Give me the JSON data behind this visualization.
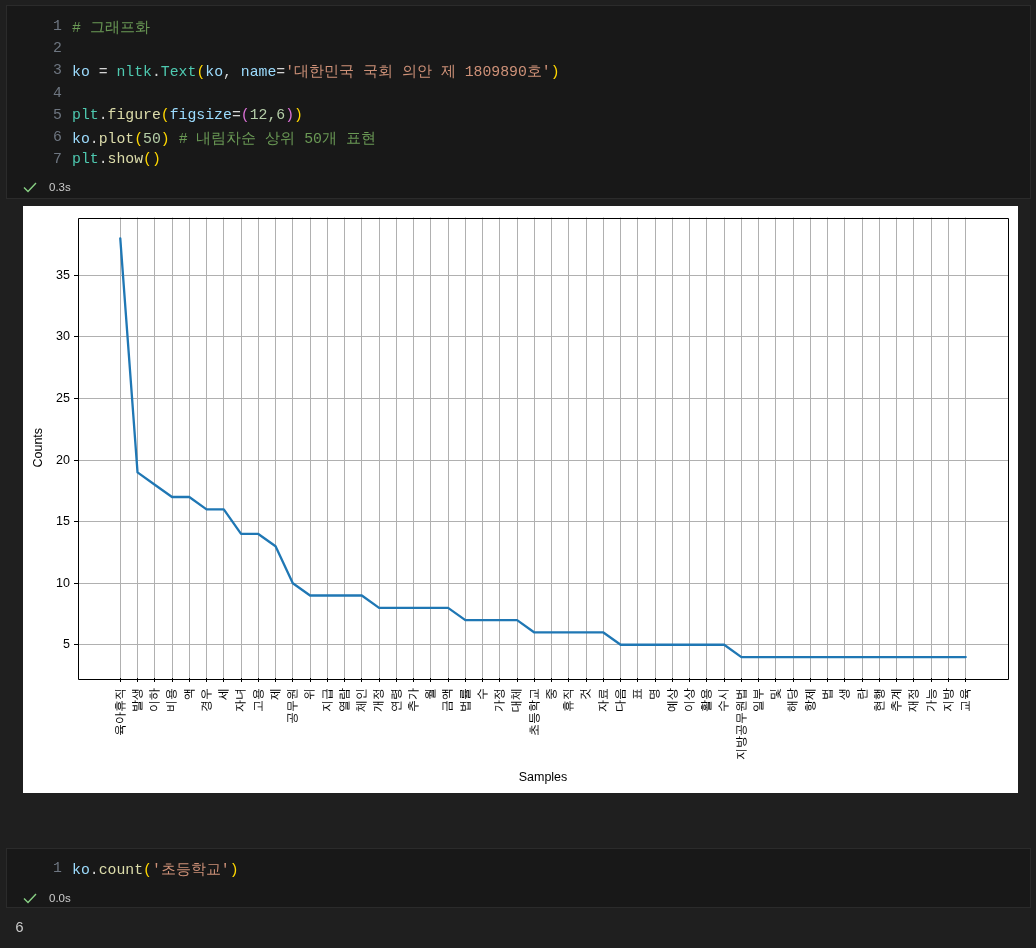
{
  "chart_data": {
    "type": "line",
    "xlabel": "Samples",
    "ylabel": "Counts",
    "categories": [
      "육아휴직",
      "발생",
      "이하",
      "비용",
      "액",
      "경우",
      "세",
      "자녀",
      "고용",
      "제",
      "공무원",
      "위",
      "지급",
      "열람",
      "체인",
      "개정",
      "연령",
      "추가",
      "월",
      "금액",
      "법률",
      "수",
      "가정",
      "대체",
      "초등학교",
      "중",
      "휴직",
      "것",
      "자료",
      "다음",
      "표",
      "명",
      "예상",
      "이상",
      "활용",
      "수시",
      "지방공무원법",
      "일부",
      "및",
      "해당",
      "항제",
      "법",
      "생",
      "란",
      "현행",
      "추계",
      "재정",
      "가능",
      "지방",
      "교육"
    ],
    "values": [
      38,
      19,
      18,
      17,
      17,
      16,
      16,
      14,
      14,
      13,
      10,
      9,
      9,
      9,
      9,
      8,
      8,
      8,
      8,
      8,
      7,
      7,
      7,
      7,
      6,
      6,
      6,
      6,
      6,
      5,
      5,
      5,
      5,
      5,
      5,
      5,
      4,
      4,
      4,
      4,
      4,
      4,
      4,
      4,
      4,
      4,
      4,
      4,
      4,
      4
    ],
    "color": "#1f77b4",
    "ylim": [
      2.3,
      39.7
    ],
    "yticks": [
      5,
      10,
      15,
      20,
      25,
      30,
      35
    ],
    "grid": true,
    "annotations": [
      "1 # 그래프화",
      "2",
      "3 ko = nltk.Text(ko, name='대한민국 국회 의안 제 1809890호')",
      "4",
      "5 plt.figure(figsize=(12,6))",
      "6 ko.plot(50) # 내림차순 상위 50개 표현",
      "7 plt.show()",
      "0.3s",
      "1 ko.count('초등학교')",
      "0.0s",
      "6"
    ]
  }
}
